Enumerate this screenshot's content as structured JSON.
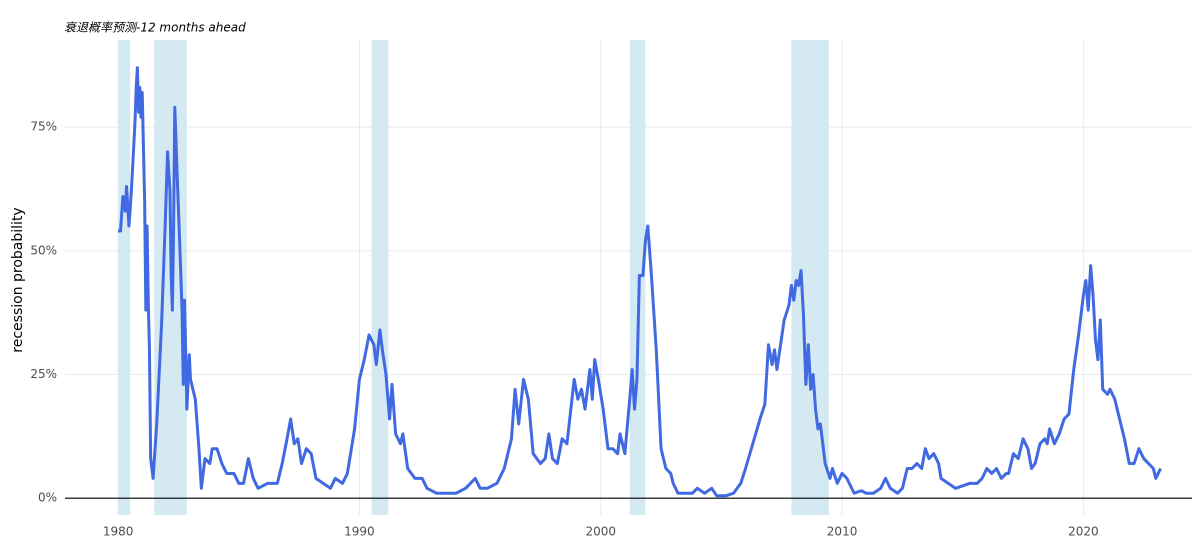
{
  "chart_data": {
    "type": "line",
    "title": "衰退概率预测-12 months ahead",
    "y_label": "recession probability",
    "xlim": [
      1977.8,
      2024.5
    ],
    "xticks": [
      1980,
      1990,
      2000,
      2010,
      2020
    ],
    "ylim": [
      -3.4,
      92.6
    ],
    "yticks": [
      {
        "value": 0,
        "label": "0%"
      },
      {
        "value": 25,
        "label": "25%"
      },
      {
        "value": 50,
        "label": "50%"
      },
      {
        "value": 75,
        "label": "75%"
      }
    ],
    "grid": true,
    "shade_color": "#d4e9f2",
    "shaded_periods": [
      [
        1980.0,
        1980.5
      ],
      [
        1981.5,
        1982.85
      ],
      [
        1990.5,
        1991.2
      ],
      [
        2001.2,
        2001.85
      ],
      [
        2007.9,
        2009.45
      ]
    ],
    "series": [
      {
        "color": "#4169e1",
        "x": [
          1980.0,
          1980.1,
          1980.2,
          1980.3,
          1980.35,
          1980.45,
          1980.55,
          1980.7,
          1980.75,
          1980.8,
          1980.85,
          1980.9,
          1980.95,
          1981.0,
          1981.1,
          1981.15,
          1981.2,
          1981.25,
          1981.3,
          1981.35,
          1981.45,
          1981.6,
          1981.8,
          1981.95,
          1982.05,
          1982.15,
          1982.2,
          1982.25,
          1982.3,
          1982.35,
          1982.45,
          1982.55,
          1982.65,
          1982.7,
          1982.75,
          1982.8,
          1982.85,
          1982.95,
          1983.0,
          1983.2,
          1983.35,
          1983.45,
          1983.6,
          1983.8,
          1983.9,
          1984.1,
          1984.3,
          1984.5,
          1984.8,
          1985.0,
          1985.2,
          1985.4,
          1985.6,
          1985.8,
          1986.2,
          1986.6,
          1986.8,
          1987.0,
          1987.15,
          1987.3,
          1987.45,
          1987.6,
          1987.8,
          1988.0,
          1988.2,
          1988.5,
          1988.8,
          1989.0,
          1989.3,
          1989.5,
          1989.8,
          1990.0,
          1990.2,
          1990.4,
          1990.6,
          1990.7,
          1990.85,
          1990.95,
          1991.1,
          1991.25,
          1991.35,
          1991.5,
          1991.7,
          1991.8,
          1992.0,
          1992.3,
          1992.6,
          1992.8,
          1993.2,
          1993.6,
          1994.0,
          1994.4,
          1994.8,
          1995.0,
          1995.3,
          1995.7,
          1996.0,
          1996.3,
          1996.45,
          1996.6,
          1996.8,
          1997.0,
          1997.2,
          1997.5,
          1997.7,
          1997.85,
          1998.0,
          1998.2,
          1998.4,
          1998.6,
          1998.9,
          1999.05,
          1999.2,
          1999.35,
          1999.5,
          1999.55,
          1999.65,
          1999.75,
          1999.9,
          2000.1,
          2000.3,
          2000.5,
          2000.7,
          2000.8,
          2001.0,
          2001.2,
          2001.3,
          2001.4,
          2001.5,
          2001.6,
          2001.75,
          2001.85,
          2001.95,
          2002.1,
          2002.3,
          2002.5,
          2002.7,
          2002.9,
          2003.0,
          2003.2,
          2003.5,
          2003.8,
          2004.0,
          2004.3,
          2004.6,
          2004.8,
          2005.2,
          2005.5,
          2005.8,
          2006.0,
          2006.3,
          2006.6,
          2006.8,
          2006.95,
          2007.1,
          2007.2,
          2007.3,
          2007.45,
          2007.6,
          2007.8,
          2007.9,
          2008.0,
          2008.1,
          2008.2,
          2008.3,
          2008.4,
          2008.5,
          2008.6,
          2008.7,
          2008.8,
          2008.9,
          2009.0,
          2009.1,
          2009.3,
          2009.5,
          2009.6,
          2009.8,
          2010.0,
          2010.2,
          2010.5,
          2010.8,
          2011.0,
          2011.3,
          2011.6,
          2011.8,
          2012.0,
          2012.3,
          2012.5,
          2012.7,
          2012.9,
          2013.1,
          2013.3,
          2013.45,
          2013.6,
          2013.8,
          2014.0,
          2014.1,
          2014.4,
          2014.7,
          2015.0,
          2015.3,
          2015.6,
          2015.8,
          2016.0,
          2016.2,
          2016.4,
          2016.6,
          2016.8,
          2016.9,
          2017.1,
          2017.3,
          2017.5,
          2017.7,
          2017.85,
          2018.0,
          2018.2,
          2018.4,
          2018.5,
          2018.6,
          2018.8,
          2019.0,
          2019.2,
          2019.4,
          2019.6,
          2019.8,
          2019.9,
          2020.0,
          2020.1,
          2020.2,
          2020.3,
          2020.4,
          2020.5,
          2020.6,
          2020.7,
          2020.8,
          2021.0,
          2021.1,
          2021.3,
          2021.5,
          2021.7,
          2021.9,
          2022.1,
          2022.3,
          2022.5,
          2022.7,
          2022.9,
          2023.0,
          2023.1,
          2023.2
        ],
        "values": [
          54,
          54,
          61,
          58,
          63,
          55,
          62,
          76,
          83,
          87,
          78,
          83,
          77,
          82,
          60,
          38,
          55,
          40,
          30,
          8,
          4,
          15,
          35,
          55,
          70,
          62,
          45,
          38,
          55,
          79,
          65,
          52,
          38,
          23,
          40,
          30,
          18,
          29,
          24,
          20,
          10,
          2,
          8,
          7,
          10,
          10,
          7,
          5,
          5,
          3,
          3,
          8,
          4,
          2,
          3,
          3,
          7,
          12,
          16,
          11,
          12,
          7,
          10,
          9,
          4,
          3,
          2,
          4,
          3,
          5,
          14,
          24,
          28,
          33,
          31,
          27,
          34,
          30,
          25,
          16,
          23,
          13,
          11,
          13,
          6,
          4,
          4,
          2,
          1,
          1,
          1,
          2,
          4,
          2,
          2,
          3,
          6,
          12,
          22,
          15,
          24,
          20,
          9,
          7,
          8,
          13,
          8,
          7,
          12,
          11,
          24,
          20,
          22,
          18,
          24,
          26,
          20,
          28,
          24,
          18,
          10,
          10,
          9,
          13,
          9,
          20,
          26,
          18,
          24,
          45,
          45,
          52,
          55,
          45,
          30,
          10,
          6,
          5,
          3,
          1,
          1,
          1,
          2,
          1,
          2,
          0.5,
          0.5,
          1,
          3,
          6,
          11,
          16,
          19,
          31,
          27,
          30,
          26,
          31,
          36,
          39,
          43,
          40,
          44,
          43,
          46,
          37,
          23,
          31,
          22,
          25,
          18,
          14,
          15,
          7,
          4,
          6,
          3,
          5,
          4,
          1,
          1.5,
          1,
          1,
          2,
          4,
          2,
          1,
          2,
          6,
          6,
          7,
          6,
          10,
          8,
          9,
          7,
          4,
          3,
          2,
          2.5,
          3,
          3,
          4,
          6,
          5,
          6,
          4,
          5,
          5,
          9,
          8,
          12,
          10,
          6,
          7,
          11,
          12,
          11,
          14,
          11,
          13,
          16,
          17,
          26,
          33,
          37,
          41,
          44,
          38,
          47,
          41,
          32,
          28,
          36,
          22,
          21,
          22,
          20,
          16,
          12,
          7,
          7,
          10,
          8,
          7,
          6,
          4,
          5,
          6
        ]
      }
    ]
  }
}
